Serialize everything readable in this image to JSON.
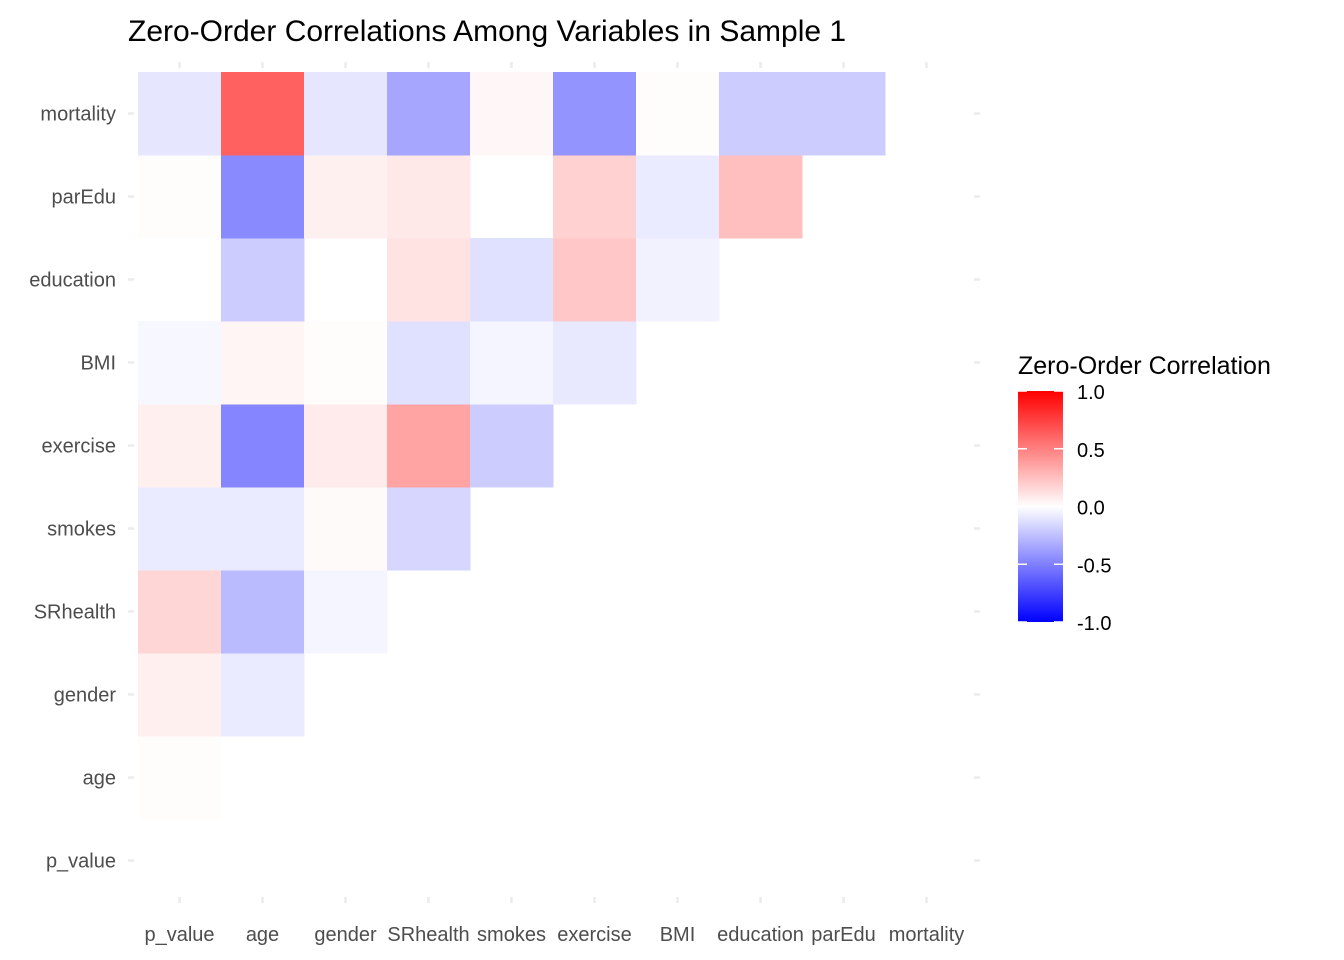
{
  "chart_data": {
    "type": "heatmap",
    "title": "Zero-Order Correlations Among Variables in Sample 1",
    "xlabel": "",
    "ylabel": "",
    "variables": [
      "p_value",
      "age",
      "gender",
      "SRhealth",
      "smokes",
      "exercise",
      "BMI",
      "education",
      "parEdu",
      "mortality"
    ],
    "grid": true,
    "legend": {
      "title": "Zero-Order Correlation",
      "placement": "right",
      "range": [
        -1,
        1
      ],
      "ticks": [
        "1.0",
        "0.5",
        "0.0",
        "-0.5",
        "-1.0"
      ],
      "tick_values": [
        1.0,
        0.5,
        0.0,
        -0.5,
        -1.0
      ],
      "colors": {
        "low": "#0000ff",
        "mid": "#ffffff",
        "high": "#ff0000"
      }
    },
    "cells": [
      {
        "row": "age",
        "col": "p_value",
        "value": 0.01
      },
      {
        "row": "gender",
        "col": "p_value",
        "value": 0.06
      },
      {
        "row": "gender",
        "col": "age",
        "value": -0.08
      },
      {
        "row": "SRhealth",
        "col": "p_value",
        "value": 0.16
      },
      {
        "row": "SRhealth",
        "col": "age",
        "value": -0.27
      },
      {
        "row": "SRhealth",
        "col": "gender",
        "value": -0.04
      },
      {
        "row": "smokes",
        "col": "p_value",
        "value": -0.08
      },
      {
        "row": "smokes",
        "col": "age",
        "value": -0.08
      },
      {
        "row": "smokes",
        "col": "gender",
        "value": 0.02
      },
      {
        "row": "smokes",
        "col": "SRhealth",
        "value": -0.16
      },
      {
        "row": "exercise",
        "col": "p_value",
        "value": 0.06
      },
      {
        "row": "exercise",
        "col": "age",
        "value": -0.48
      },
      {
        "row": "exercise",
        "col": "gender",
        "value": 0.08
      },
      {
        "row": "exercise",
        "col": "SRhealth",
        "value": 0.36
      },
      {
        "row": "exercise",
        "col": "smokes",
        "value": -0.2
      },
      {
        "row": "BMI",
        "col": "p_value",
        "value": -0.03
      },
      {
        "row": "BMI",
        "col": "age",
        "value": 0.04
      },
      {
        "row": "BMI",
        "col": "gender",
        "value": 0.01
      },
      {
        "row": "BMI",
        "col": "SRhealth",
        "value": -0.12
      },
      {
        "row": "BMI",
        "col": "smokes",
        "value": -0.04
      },
      {
        "row": "BMI",
        "col": "exercise",
        "value": -0.09
      },
      {
        "row": "education",
        "col": "age",
        "value": -0.2
      },
      {
        "row": "education",
        "col": "SRhealth",
        "value": 0.11
      },
      {
        "row": "education",
        "col": "smokes",
        "value": -0.12
      },
      {
        "row": "education",
        "col": "exercise",
        "value": 0.22
      },
      {
        "row": "education",
        "col": "BMI",
        "value": -0.05
      },
      {
        "row": "parEdu",
        "col": "p_value",
        "value": 0.01
      },
      {
        "row": "parEdu",
        "col": "age",
        "value": -0.46
      },
      {
        "row": "parEdu",
        "col": "gender",
        "value": 0.06
      },
      {
        "row": "parEdu",
        "col": "SRhealth",
        "value": 0.09
      },
      {
        "row": "parEdu",
        "col": "exercise",
        "value": 0.18
      },
      {
        "row": "parEdu",
        "col": "BMI",
        "value": -0.08
      },
      {
        "row": "parEdu",
        "col": "education",
        "value": 0.25
      },
      {
        "row": "mortality",
        "col": "p_value",
        "value": -0.1
      },
      {
        "row": "mortality",
        "col": "age",
        "value": 0.62
      },
      {
        "row": "mortality",
        "col": "gender",
        "value": -0.1
      },
      {
        "row": "mortality",
        "col": "SRhealth",
        "value": -0.35
      },
      {
        "row": "mortality",
        "col": "smokes",
        "value": 0.03
      },
      {
        "row": "mortality",
        "col": "exercise",
        "value": -0.42
      },
      {
        "row": "mortality",
        "col": "BMI",
        "value": 0.01
      },
      {
        "row": "mortality",
        "col": "education",
        "value": -0.2
      },
      {
        "row": "mortality",
        "col": "parEdu",
        "value": -0.2
      }
    ]
  }
}
